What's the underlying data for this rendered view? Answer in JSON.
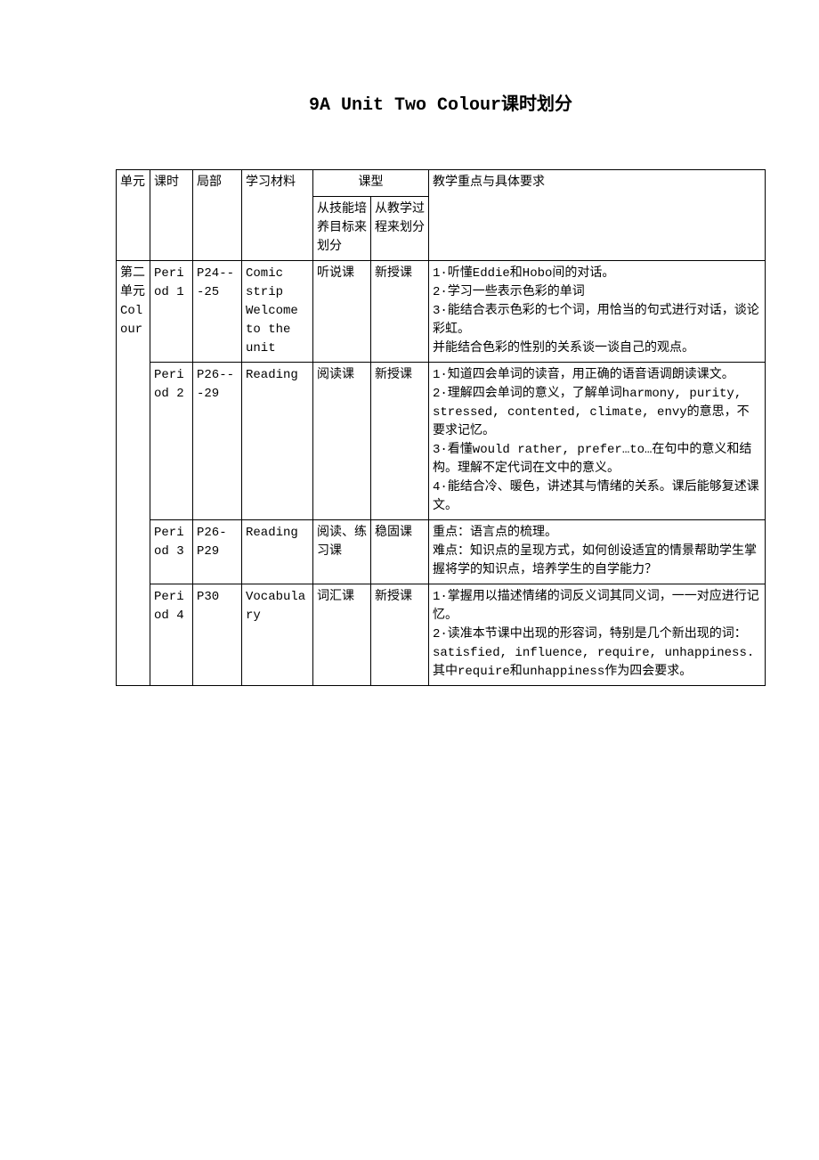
{
  "title": "9A Unit Two Colour课时划分",
  "headers": {
    "unit": "单元",
    "period": "课时",
    "part": "局部",
    "material": "学习材料",
    "lesson_type": "课型",
    "type_skill": "从技能培养目标来划分",
    "type_process": "从教学过程来划分",
    "requirements": "教学重点与具体要求"
  },
  "unit_label": "第二单元Colour",
  "rows": [
    {
      "period": "Period 1",
      "part": " P24---25",
      "material": "Comic strip Welcome to the unit",
      "type_skill": "听说课",
      "type_process": "新授课",
      "req": "1·听懂Eddie和Hobo间的对话。\n2·学习一些表示色彩的单词\n3·能结合表示色彩的七个词，用恰当的句式进行对话，谈论彩虹。\n并能结合色彩的性别的关系谈一谈自己的观点。"
    },
    {
      "period": "Period 2",
      "part": "P26---29",
      "material": "Reading",
      "type_skill": "阅读课",
      "type_process": "新授课",
      "req": "1·知道四会单词的读音，用正确的语音语调朗读课文。\n2·理解四会单词的意义，了解单词harmony, purity, stressed, contented, climate, envy的意思，不要求记忆。\n3·看懂would rather, prefer…to…在句中的意义和结构。理解不定代词在文中的意义。\n4·能结合冷、暖色，讲述其与情绪的关系。课后能够复述课文。"
    },
    {
      "period": "Period 3",
      "part": "P26-P29",
      "material": "Reading",
      "type_skill": "阅读、练习课",
      "type_process": "稳固课",
      "req": "重点：语言点的梳理。\n难点：知识点的呈现方式，如何创设适宜的情景帮助学生掌握将学的知识点，培养学生的自学能力？"
    },
    {
      "period": "Period 4",
      "part": "P30",
      "material": "Vocabulary",
      "type_skill": "词汇课",
      "type_process": "新授课",
      "req": "1·掌握用以描述情绪的词反义词其同义词，一一对应进行记忆。\n2·读准本节课中出现的形容词，特别是几个新出现的词：satisfied, influence, require, unhappiness.\n其中require和unhappiness作为四会要求。"
    }
  ]
}
